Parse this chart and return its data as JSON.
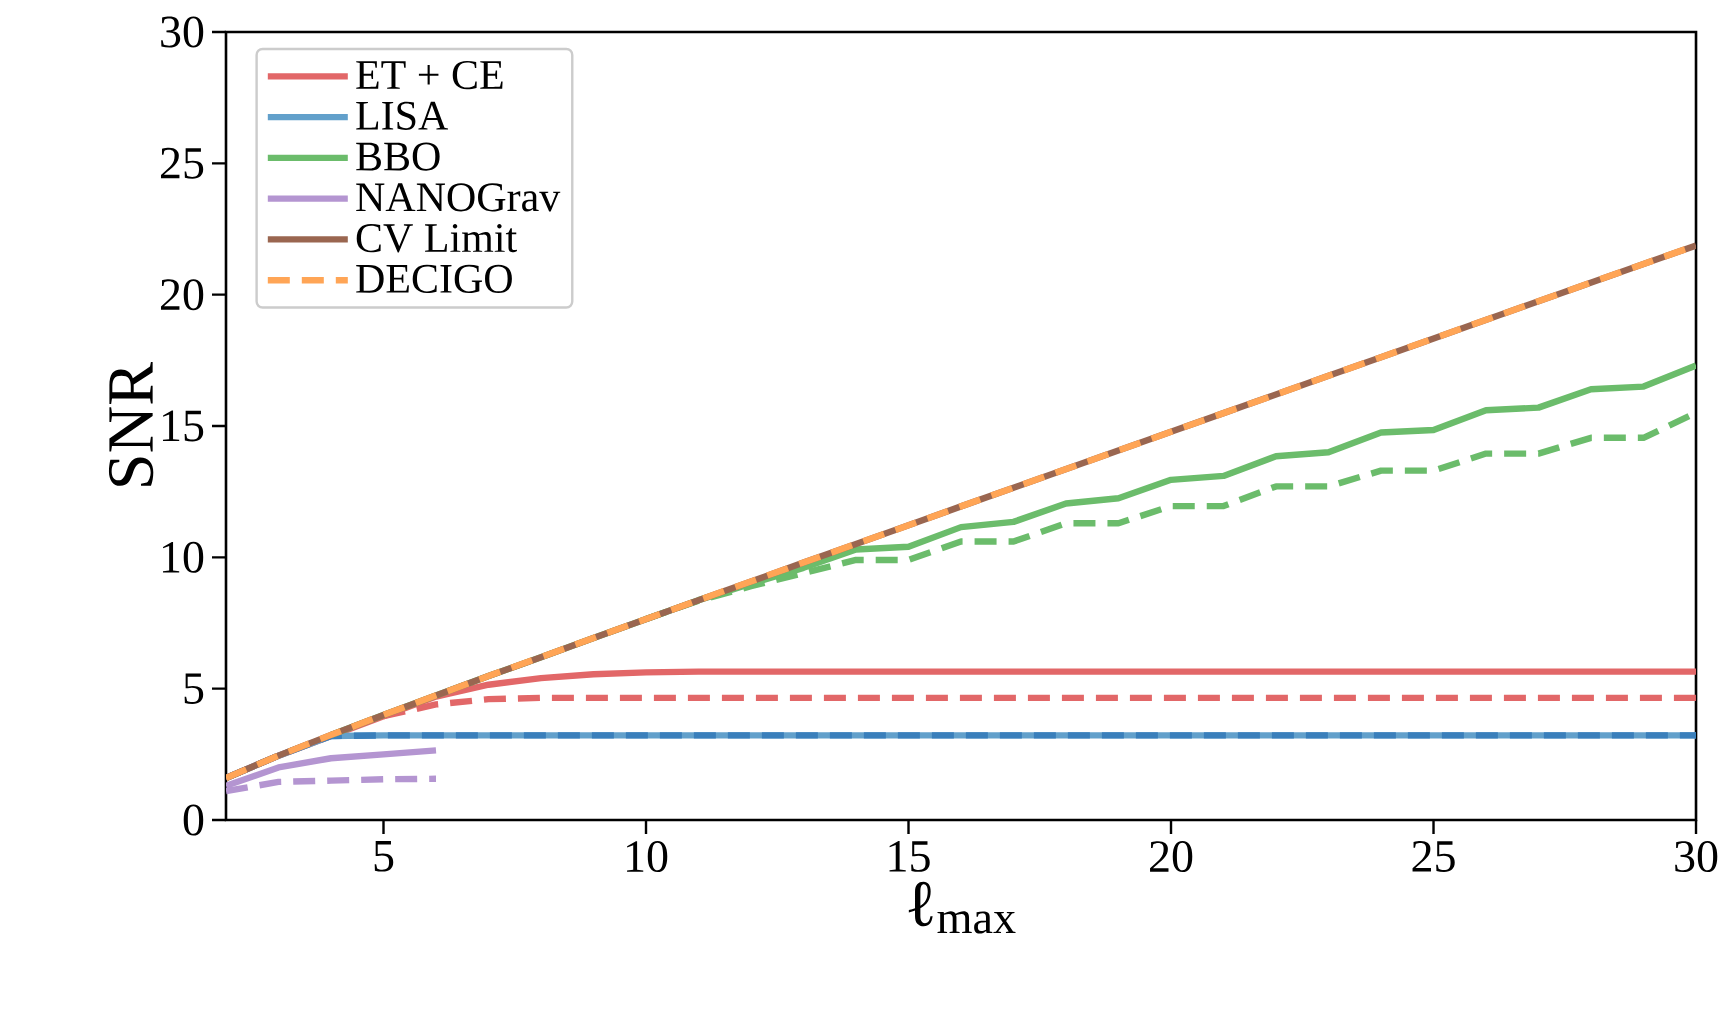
{
  "chart_data": {
    "type": "line",
    "xlabel": "ℓ$_{max}$",
    "ylabel": "SNR",
    "xlim": [
      2,
      30
    ],
    "ylim": [
      0,
      30
    ],
    "xticks": [
      5,
      10,
      15,
      20,
      25,
      30
    ],
    "yticks": [
      0,
      5,
      10,
      15,
      20,
      25,
      30
    ],
    "grid": false,
    "legend": "top left",
    "marker": "none",
    "x": [
      2,
      3,
      4,
      5,
      6,
      7,
      8,
      9,
      10,
      11,
      12,
      13,
      14,
      15,
      16,
      17,
      18,
      19,
      20,
      21,
      22,
      23,
      24,
      25,
      26,
      27,
      28,
      29,
      30
    ],
    "series": [
      {
        "name": "ET + CE",
        "color": "#e26768",
        "line_style": "solid",
        "values": [
          1.6,
          2.45,
          3.2,
          3.95,
          4.7,
          5.15,
          5.4,
          5.55,
          5.62,
          5.65,
          5.65,
          5.65,
          5.65,
          5.65,
          5.65,
          5.65,
          5.65,
          5.65,
          5.65,
          5.65,
          5.65,
          5.65,
          5.65,
          5.65,
          5.65,
          5.65,
          5.65,
          5.65,
          5.65
        ]
      },
      {
        "color": "#e26768",
        "line_style": "dashed",
        "values": [
          null,
          null,
          null,
          3.95,
          4.4,
          4.6,
          4.65,
          4.65,
          4.65,
          4.65,
          4.65,
          4.65,
          4.65,
          4.65,
          4.65,
          4.65,
          4.65,
          4.65,
          4.65,
          4.65,
          4.65,
          4.65,
          4.65,
          4.65,
          4.65,
          4.65,
          4.65,
          4.65,
          4.65
        ]
      },
      {
        "name": "LISA",
        "color": "#62a0cb",
        "line_style": "solid",
        "values": [
          1.6,
          2.45,
          3.2,
          3.22,
          3.22,
          3.22,
          3.22,
          3.22,
          3.22,
          3.22,
          3.22,
          3.22,
          3.22,
          3.22,
          3.22,
          3.22,
          3.22,
          3.22,
          3.22,
          3.22,
          3.22,
          3.22,
          3.22,
          3.22,
          3.22,
          3.22,
          3.22,
          3.22,
          3.22
        ]
      },
      {
        "color": "#3a7fbb",
        "line_style": "dashed",
        "values": [
          1.6,
          2.45,
          3.2,
          3.22,
          3.22,
          3.22,
          3.22,
          3.22,
          3.22,
          3.22,
          3.22,
          3.22,
          3.22,
          3.22,
          3.22,
          3.22,
          3.22,
          3.22,
          3.22,
          3.22,
          3.22,
          3.22,
          3.22,
          3.22,
          3.22,
          3.22,
          3.22,
          3.22,
          3.22
        ]
      },
      {
        "name": "BBO",
        "color": "#6bbc6b",
        "line_style": "solid",
        "values": [
          null,
          null,
          3.24,
          4.0,
          4.74,
          5.48,
          6.2,
          6.93,
          7.65,
          8.37,
          9.0,
          9.6,
          10.3,
          10.4,
          11.15,
          11.35,
          12.05,
          12.25,
          12.95,
          13.1,
          13.85,
          14.0,
          14.75,
          14.85,
          15.6,
          15.7,
          16.4,
          16.5,
          17.3
        ]
      },
      {
        "color": "#6bbc6b",
        "line_style": "dashed",
        "values": [
          null,
          null,
          null,
          null,
          null,
          null,
          null,
          null,
          7.65,
          8.35,
          8.9,
          9.4,
          9.9,
          9.9,
          10.6,
          10.6,
          11.3,
          11.3,
          11.95,
          11.95,
          12.7,
          12.7,
          13.3,
          13.3,
          13.95,
          13.95,
          14.55,
          14.55,
          15.5
        ]
      },
      {
        "name": "NANOGrav",
        "color": "#b495d1",
        "line_style": "solid",
        "values": [
          1.3,
          2.0,
          2.35,
          2.5,
          2.65,
          null,
          null,
          null,
          null,
          null,
          null,
          null,
          null,
          null,
          null,
          null,
          null,
          null,
          null,
          null,
          null,
          null,
          null,
          null,
          null,
          null,
          null,
          null,
          null
        ]
      },
      {
        "color": "#b495d1",
        "line_style": "dashed",
        "values": [
          1.1,
          1.45,
          1.5,
          1.55,
          1.57,
          null,
          null,
          null,
          null,
          null,
          null,
          null,
          null,
          null,
          null,
          null,
          null,
          null,
          null,
          null,
          null,
          null,
          null,
          null,
          null,
          null,
          null,
          null,
          null
        ]
      },
      {
        "name": "CV Limit",
        "color": "#9a6650",
        "line_style": "solid",
        "values": [
          1.6,
          2.45,
          3.24,
          4.0,
          4.74,
          5.48,
          6.2,
          6.93,
          7.65,
          8.37,
          9.08,
          9.8,
          10.51,
          11.22,
          11.94,
          12.65,
          13.36,
          14.07,
          14.78,
          15.49,
          16.2,
          16.91,
          17.62,
          18.33,
          19.04,
          19.75,
          20.46,
          21.17,
          21.87
        ]
      },
      {
        "name": "DECIGO",
        "color": "#ffa556",
        "line_style": "dashed",
        "values": [
          1.6,
          2.45,
          3.24,
          4.0,
          4.74,
          5.48,
          6.2,
          6.93,
          7.65,
          8.37,
          9.08,
          9.8,
          10.51,
          11.22,
          11.94,
          12.65,
          13.36,
          14.07,
          14.78,
          15.49,
          16.2,
          16.91,
          17.62,
          18.33,
          19.04,
          19.75,
          20.46,
          21.17,
          21.87
        ]
      }
    ]
  }
}
